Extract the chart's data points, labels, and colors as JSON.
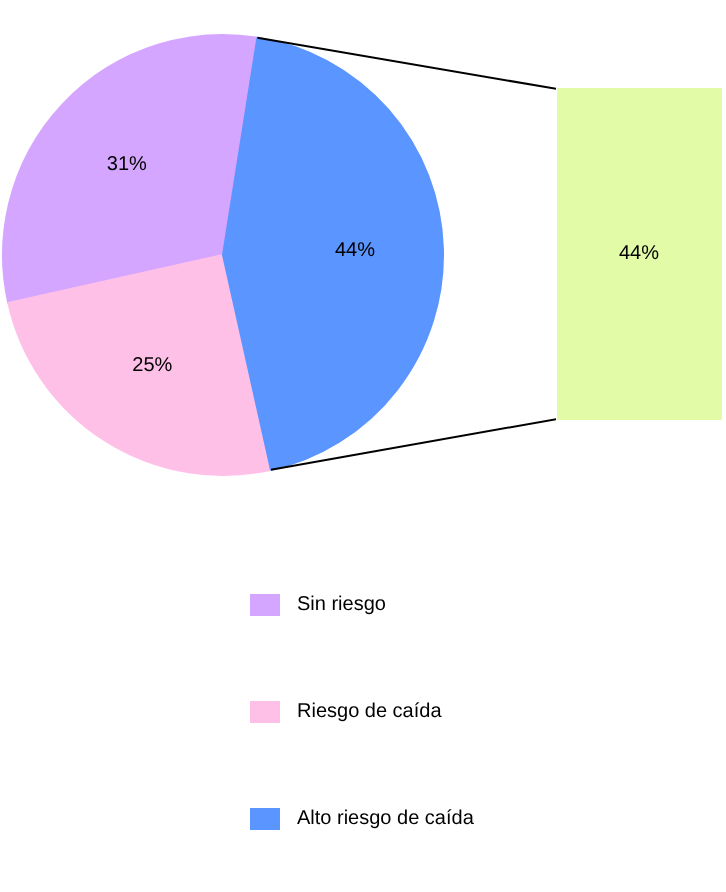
{
  "chart_data": [
    {
      "type": "pie",
      "categories": [
        "Sin riesgo",
        "Riesgo de caída",
        "Alto riesgo de caída"
      ],
      "values": [
        31,
        25,
        44
      ],
      "colors": [
        "#d5a6ff",
        "#ffc0e8",
        "#5b95ff"
      ],
      "value_labels": [
        "31%",
        "25%",
        "44%"
      ],
      "legend": "bottom"
    },
    {
      "type": "other",
      "categories": [
        null
      ],
      "values": [
        44
      ],
      "colors": [
        "#e2fba6"
      ],
      "value_labels": [
        "44%"
      ]
    }
  ]
}
